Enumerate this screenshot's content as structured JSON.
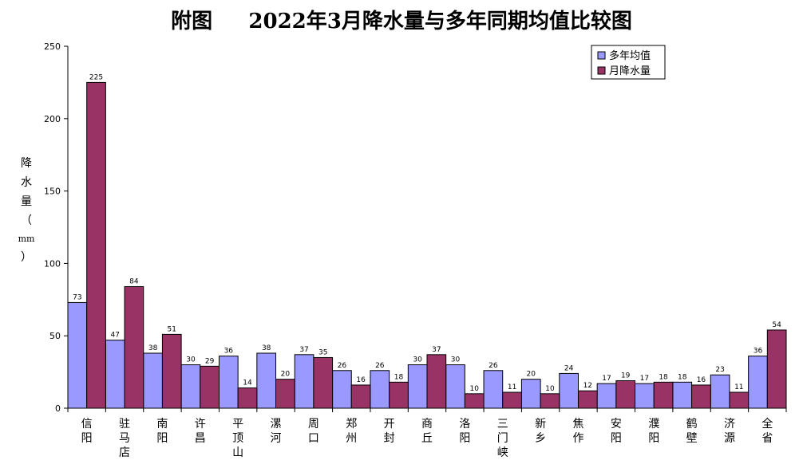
{
  "chart_data": {
    "type": "bar",
    "title": "附图     2022年3月降水量与多年同期均值比较图",
    "ylabel": "降水量（mm）",
    "xlabel": "",
    "ylim": [
      0,
      250
    ],
    "yticks": [
      0,
      50,
      100,
      150,
      200,
      250
    ],
    "grid": false,
    "legend_position": "top-right",
    "categories": [
      "信阳",
      "驻马店",
      "南阳",
      "许昌",
      "平顶山",
      "漯河",
      "周口",
      "郑州",
      "开封",
      "商丘",
      "洛阳",
      "三门峡",
      "新乡",
      "焦作",
      "安阳",
      "濮阳",
      "鹤壁",
      "济源",
      "全省"
    ],
    "series": [
      {
        "name": "多年均值",
        "color": "#9999FF",
        "values": [
          73,
          47,
          38,
          30,
          36,
          38,
          37,
          26,
          26,
          30,
          30,
          26,
          20,
          24,
          17,
          17,
          18,
          23,
          36
        ]
      },
      {
        "name": "月降水量",
        "color": "#993366",
        "values": [
          225,
          84,
          51,
          29,
          14,
          20,
          35,
          16,
          18,
          37,
          10,
          11,
          10,
          12,
          19,
          18,
          16,
          11,
          54
        ]
      }
    ]
  }
}
